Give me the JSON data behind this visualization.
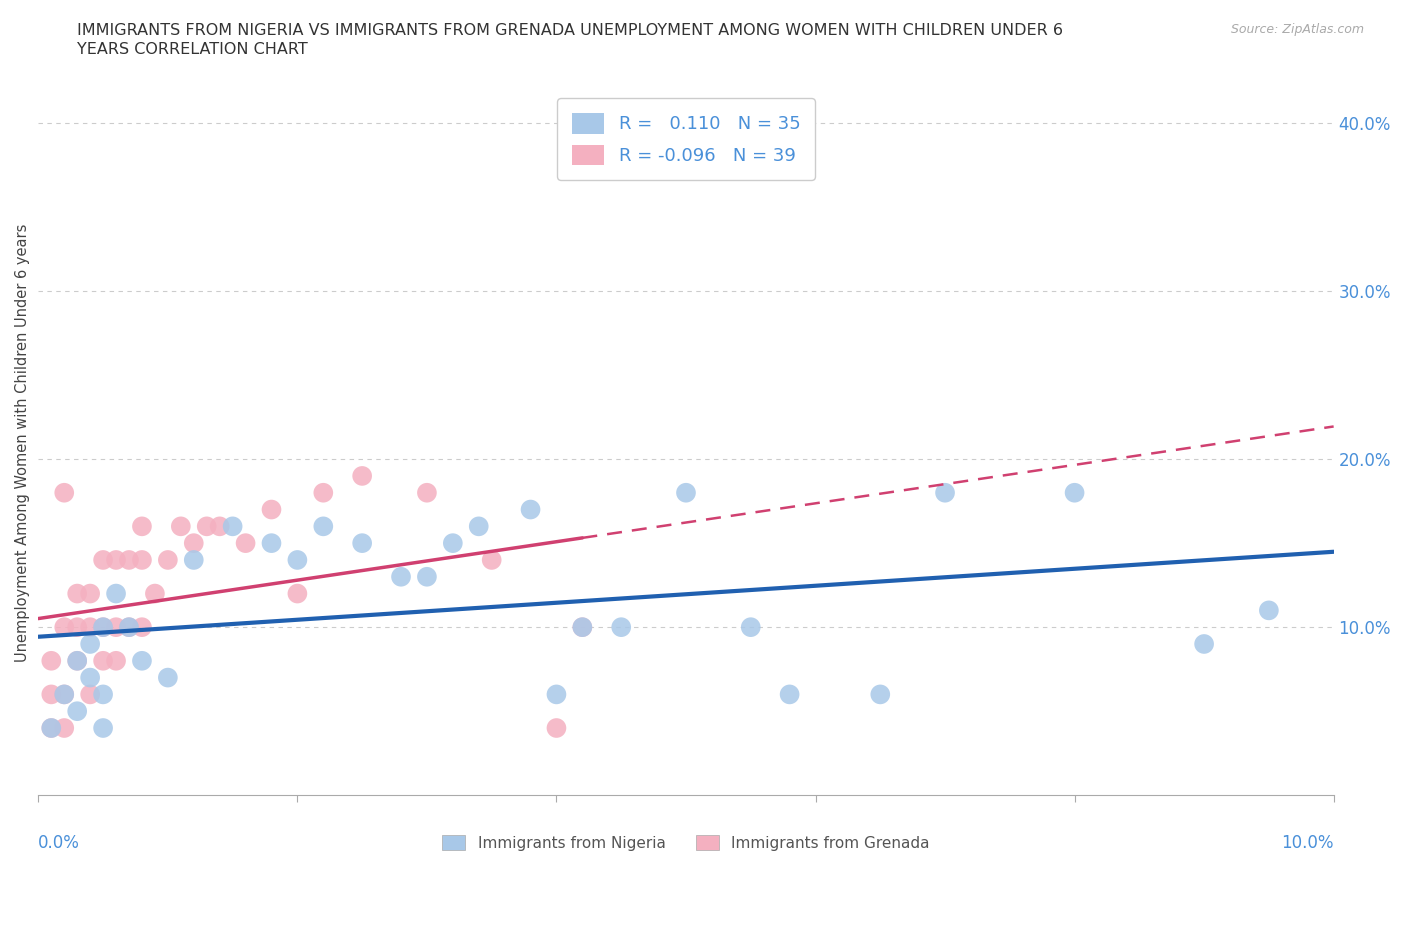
{
  "title_line1": "IMMIGRANTS FROM NIGERIA VS IMMIGRANTS FROM GRENADA UNEMPLOYMENT AMONG WOMEN WITH CHILDREN UNDER 6",
  "title_line2": "YEARS CORRELATION CHART",
  "source": "Source: ZipAtlas.com",
  "ylabel": "Unemployment Among Women with Children Under 6 years",
  "nigeria_R": 0.11,
  "nigeria_N": 35,
  "grenada_R": -0.096,
  "grenada_N": 39,
  "nigeria_color": "#a8c8e8",
  "grenada_color": "#f4b0c0",
  "nigeria_line_color": "#2060b0",
  "grenada_line_color": "#d04070",
  "nigeria_x": [
    0.001,
    0.002,
    0.003,
    0.003,
    0.004,
    0.004,
    0.005,
    0.005,
    0.005,
    0.006,
    0.007,
    0.008,
    0.01,
    0.012,
    0.015,
    0.018,
    0.02,
    0.022,
    0.025,
    0.028,
    0.03,
    0.032,
    0.034,
    0.038,
    0.04,
    0.042,
    0.045,
    0.05,
    0.055,
    0.058,
    0.065,
    0.07,
    0.08,
    0.09,
    0.095
  ],
  "nigeria_y": [
    0.04,
    0.06,
    0.08,
    0.05,
    0.09,
    0.07,
    0.06,
    0.1,
    0.04,
    0.12,
    0.1,
    0.08,
    0.07,
    0.14,
    0.16,
    0.15,
    0.14,
    0.16,
    0.15,
    0.13,
    0.13,
    0.15,
    0.16,
    0.17,
    0.06,
    0.1,
    0.1,
    0.18,
    0.1,
    0.06,
    0.06,
    0.18,
    0.18,
    0.09,
    0.11
  ],
  "grenada_x": [
    0.001,
    0.001,
    0.001,
    0.002,
    0.002,
    0.002,
    0.002,
    0.003,
    0.003,
    0.003,
    0.004,
    0.004,
    0.004,
    0.005,
    0.005,
    0.005,
    0.006,
    0.006,
    0.006,
    0.007,
    0.007,
    0.008,
    0.008,
    0.008,
    0.009,
    0.01,
    0.011,
    0.012,
    0.013,
    0.014,
    0.016,
    0.018,
    0.02,
    0.022,
    0.025,
    0.03,
    0.035,
    0.04,
    0.042
  ],
  "grenada_y": [
    0.04,
    0.06,
    0.08,
    0.06,
    0.04,
    0.1,
    0.18,
    0.08,
    0.1,
    0.12,
    0.06,
    0.1,
    0.12,
    0.08,
    0.1,
    0.14,
    0.08,
    0.1,
    0.14,
    0.1,
    0.14,
    0.1,
    0.14,
    0.16,
    0.12,
    0.14,
    0.16,
    0.15,
    0.16,
    0.16,
    0.15,
    0.17,
    0.12,
    0.18,
    0.19,
    0.18,
    0.14,
    0.04,
    0.1
  ],
  "background_color": "#ffffff",
  "grid_color": "#cccccc",
  "xlim": [
    0.0,
    0.1
  ],
  "ylim": [
    0.0,
    0.42
  ],
  "yticks": [
    0.1,
    0.2,
    0.3,
    0.4
  ],
  "yticklabels": [
    "10.0%",
    "20.0%",
    "30.0%",
    "40.0%"
  ]
}
